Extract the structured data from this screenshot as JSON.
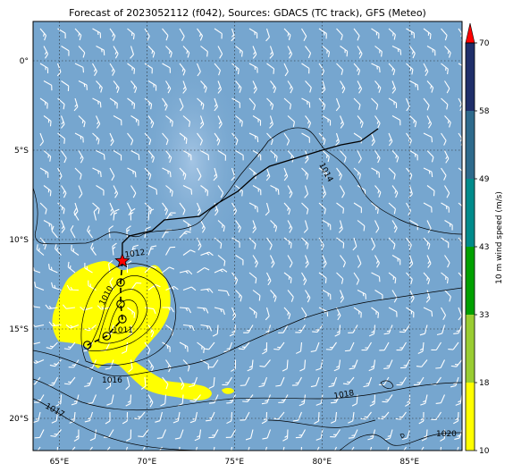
{
  "title": "Forecast of 2023052112 (f042), Sources: GDACS (TC track), GFS (Meteo)",
  "x_axis": {
    "ticks": [
      {
        "lon": 65,
        "label": "65°E"
      },
      {
        "lon": 70,
        "label": "70°E"
      },
      {
        "lon": 75,
        "label": "75°E"
      },
      {
        "lon": 80,
        "label": "80°E"
      },
      {
        "lon": 85,
        "label": "85°E"
      }
    ],
    "range": [
      63.5,
      88
    ]
  },
  "y_axis": {
    "ticks": [
      {
        "lat": 0,
        "label": "0°"
      },
      {
        "lat": -5,
        "label": "5°S"
      },
      {
        "lat": -10,
        "label": "10°S"
      },
      {
        "lat": -15,
        "label": "15°S"
      },
      {
        "lat": -20,
        "label": "20°S"
      }
    ],
    "range": [
      -21.8,
      2.2
    ]
  },
  "colorbar": {
    "label": "10 m wind speed (m/s)",
    "ticks": [
      "10",
      "18",
      "33",
      "43",
      "49",
      "58",
      "70"
    ],
    "colors": [
      "#ffff00",
      "#9acd32",
      "#00a000",
      "#008b8b",
      "#2e6a8c",
      "#1f2f6a",
      "#ff0000"
    ]
  },
  "isobars": [
    {
      "label": "1014"
    },
    {
      "label": "1012"
    },
    {
      "label": "1010"
    },
    {
      "label": "1011"
    },
    {
      "label": "1016"
    },
    {
      "label": "1018"
    },
    {
      "label": "1017"
    },
    {
      "label": "1020"
    }
  ],
  "track": {
    "observed": [
      {
        "lon": 83.2,
        "lat": -3.8
      },
      {
        "lon": 82.2,
        "lat": -4.5
      },
      {
        "lon": 81.1,
        "lat": -4.7
      },
      {
        "lon": 80.0,
        "lat": -5.0
      },
      {
        "lon": 79.0,
        "lat": -5.3
      },
      {
        "lon": 78.0,
        "lat": -5.6
      },
      {
        "lon": 77.0,
        "lat": -5.9
      },
      {
        "lon": 76.1,
        "lat": -6.5
      },
      {
        "lon": 75.2,
        "lat": -7.3
      },
      {
        "lon": 74.0,
        "lat": -8.0
      },
      {
        "lon": 73.0,
        "lat": -8.7
      },
      {
        "lon": 72.0,
        "lat": -8.8
      },
      {
        "lon": 71.0,
        "lat": -8.9
      },
      {
        "lon": 70.3,
        "lat": -9.5
      },
      {
        "lon": 69.0,
        "lat": -9.8
      },
      {
        "lon": 68.6,
        "lat": -10.2
      },
      {
        "lon": 68.6,
        "lat": -11.2
      }
    ],
    "current": {
      "lon": 68.6,
      "lat": -11.2
    },
    "forecast": [
      {
        "lon": 68.5,
        "lat": -12.4
      },
      {
        "lon": 68.5,
        "lat": -13.6
      },
      {
        "lon": 68.6,
        "lat": -14.45
      },
      {
        "lon": 67.7,
        "lat": -15.4
      },
      {
        "lon": 66.6,
        "lat": -15.9
      }
    ]
  },
  "colors": {
    "ocean": "#76a6cf",
    "land_contour": "#000000",
    "grid": "#1a1a1a",
    "barb": "#ffffff",
    "gale": "#ffff00",
    "track": "#000000",
    "storm_marker": "#ff0000"
  }
}
